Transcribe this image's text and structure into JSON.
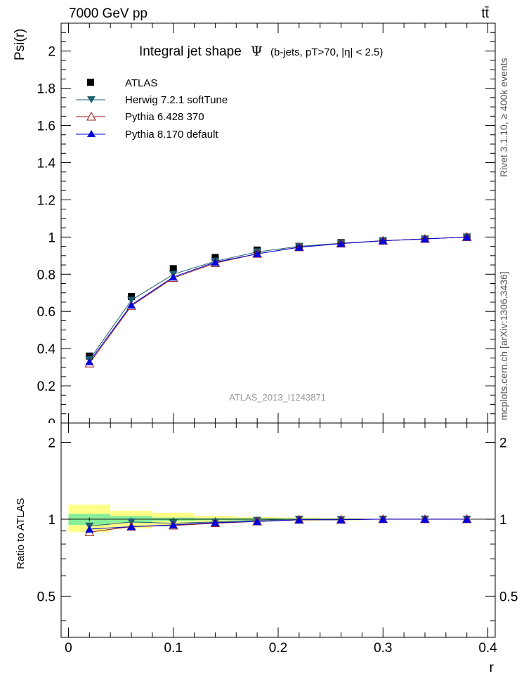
{
  "header": {
    "energy_label": "7000 GeV pp",
    "process_label": "tt̄"
  },
  "side_labels": {
    "rivet": "Rivet 3.1.10, ≥ 400k events",
    "source": "mcplots.cern.ch [arXiv:1306.3436]"
  },
  "chart_data": [
    {
      "type": "line",
      "title": "Integral jet shape Ψ (b-jets, pT>70, |η| < 2.5)",
      "title_main": "Integral jet shape",
      "title_symbol": "Ψ",
      "title_detail": "(b-jets, pT>70, |η| < 2.5)",
      "ylabel": "Psi(r)",
      "xlabel": "r",
      "watermark": "ATLAS_2013_I1243871",
      "xlim": [
        -0.007,
        0.407
      ],
      "ylim": [
        0,
        2.15
      ],
      "x_ticks": [
        0,
        0.1,
        0.2,
        0.3,
        0.4
      ],
      "y_ticks": [
        0.2,
        0.4,
        0.6,
        0.8,
        1,
        1.2,
        1.4,
        1.6,
        1.8,
        2
      ],
      "y_tick_labels": [
        "0.2",
        "0.4",
        "0.6",
        "0.8",
        "1",
        "1.2",
        "1.4",
        "1.6",
        "1.8",
        "2"
      ],
      "legend_position": "top-left",
      "x": [
        0.02,
        0.06,
        0.1,
        0.14,
        0.18,
        0.22,
        0.26,
        0.3,
        0.34,
        0.38
      ],
      "series": [
        {
          "name": "ATLAS",
          "marker": "square",
          "color": "#000000",
          "values": [
            0.36,
            0.68,
            0.83,
            0.89,
            0.93,
            0.95,
            0.97,
            0.98,
            0.99,
            1.0
          ]
        },
        {
          "name": "Herwig 7.2.1 softTune",
          "marker": "triangle-down",
          "color": "#1f6072",
          "values": [
            0.34,
            0.66,
            0.8,
            0.87,
            0.92,
            0.95,
            0.967,
            0.98,
            0.99,
            1.0
          ]
        },
        {
          "name": "Pythia 6.428 370",
          "marker": "triangle-open",
          "color": "#9c1a1a",
          "values": [
            0.32,
            0.63,
            0.78,
            0.86,
            0.91,
            0.945,
            0.965,
            0.98,
            0.99,
            1.0
          ]
        },
        {
          "name": "Pythia 8.170 default",
          "marker": "triangle-up",
          "color": "#0000dd",
          "values": [
            0.33,
            0.635,
            0.785,
            0.865,
            0.91,
            0.945,
            0.965,
            0.98,
            0.99,
            1.0
          ]
        }
      ]
    },
    {
      "type": "line",
      "ylabel": "Ratio to ATLAS",
      "xlabel": "r",
      "xlim": [
        -0.007,
        0.407
      ],
      "ylim": [
        0.345,
        2.38
      ],
      "x_ticks": [
        0,
        0.1,
        0.2,
        0.3,
        0.4
      ],
      "x_tick_labels": [
        "0",
        "0.1",
        "0.2",
        "0.3",
        "0.4"
      ],
      "y_ticks": [
        0.5,
        1,
        2
      ],
      "y_tick_labels": [
        "0.5",
        "1",
        "2"
      ],
      "x": [
        0.02,
        0.06,
        0.1,
        0.14,
        0.18,
        0.22,
        0.26,
        0.3,
        0.34,
        0.38
      ],
      "uncertainty_bands": [
        {
          "name": "stat",
          "color": "#88ee99",
          "bins": [
            [
              0.0,
              0.04,
              0.95,
              1.05
            ],
            [
              0.04,
              0.08,
              0.97,
              1.03
            ],
            [
              0.08,
              0.12,
              0.985,
              1.015
            ],
            [
              0.12,
              0.16,
              0.99,
              1.01
            ],
            [
              0.16,
              0.2,
              0.99,
              1.01
            ],
            [
              0.2,
              0.24,
              0.993,
              1.007
            ],
            [
              0.24,
              0.28,
              0.995,
              1.005
            ]
          ]
        },
        {
          "name": "total",
          "color": "#ffff88",
          "bins": [
            [
              0.0,
              0.04,
              0.89,
              1.14
            ],
            [
              0.04,
              0.08,
              0.92,
              1.08
            ],
            [
              0.08,
              0.12,
              0.95,
              1.06
            ],
            [
              0.12,
              0.16,
              0.97,
              1.03
            ],
            [
              0.16,
              0.2,
              0.98,
              1.02
            ],
            [
              0.2,
              0.24,
              0.985,
              1.015
            ],
            [
              0.24,
              0.28,
              0.99,
              1.01
            ]
          ]
        }
      ],
      "series": [
        {
          "name": "Herwig 7.2.1 softTune",
          "values": [
            0.94,
            0.975,
            0.965,
            0.975,
            0.99,
            1.0,
            0.997,
            1.0,
            1.0,
            1.0
          ]
        },
        {
          "name": "Pythia 6.428 370",
          "values": [
            0.89,
            0.935,
            0.945,
            0.965,
            0.98,
            0.995,
            0.995,
            1.0,
            1.0,
            1.0
          ]
        },
        {
          "name": "Pythia 8.170 default",
          "values": [
            0.915,
            0.935,
            0.95,
            0.97,
            0.98,
            0.995,
            0.995,
            1.0,
            1.0,
            1.0
          ]
        }
      ]
    }
  ]
}
